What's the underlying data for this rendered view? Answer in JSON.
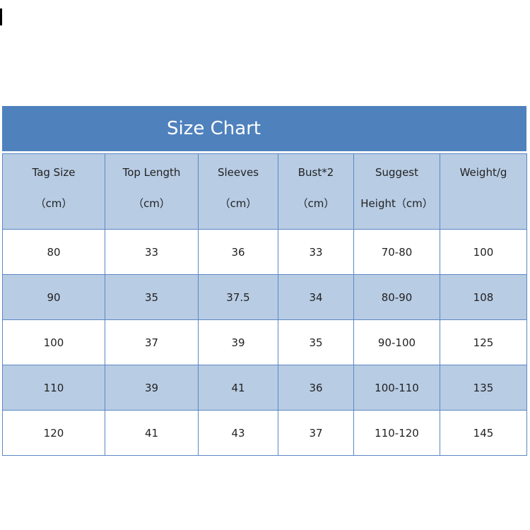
{
  "title": "Size Chart",
  "headers": [
    [
      "Tag Size",
      "（cm）"
    ],
    [
      "Top Length",
      "（cm）"
    ],
    [
      "Sleeves",
      "（cm）"
    ],
    [
      "Bust*2",
      "（cm）"
    ],
    [
      "Suggest",
      "Height（cm）"
    ],
    [
      "Weight/g",
      ""
    ]
  ],
  "rows": [
    [
      "80",
      "33",
      "36",
      "33",
      "70-80",
      "100"
    ],
    [
      "90",
      "35",
      "37.5",
      "34",
      "80-90",
      "108"
    ],
    [
      "100",
      "37",
      "39",
      "35",
      "90-100",
      "125"
    ],
    [
      "110",
      "39",
      "41",
      "36",
      "100-110",
      "135"
    ],
    [
      "120",
      "41",
      "43",
      "37",
      "110-120",
      "145"
    ]
  ],
  "colors": {
    "title_bg": "#4f81bd",
    "band": "#b8cce4"
  }
}
